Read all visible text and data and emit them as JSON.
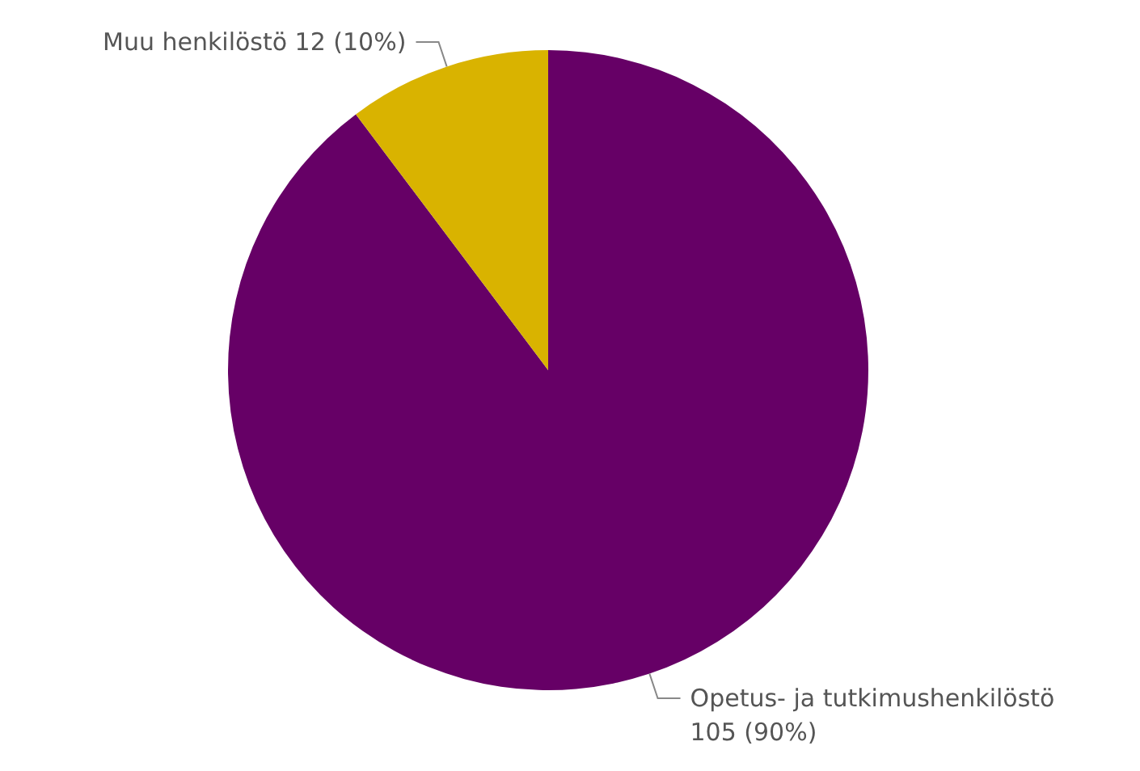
{
  "chart_data": {
    "type": "pie",
    "categories": [
      "Opetus- ja tutkimushenkilöstö",
      "Muu henkilöstö"
    ],
    "values": [
      105,
      12
    ],
    "colors": [
      "#660066",
      "#d9b300"
    ],
    "value_labels": [
      "105 (90%)",
      "12 (10%)"
    ]
  }
}
